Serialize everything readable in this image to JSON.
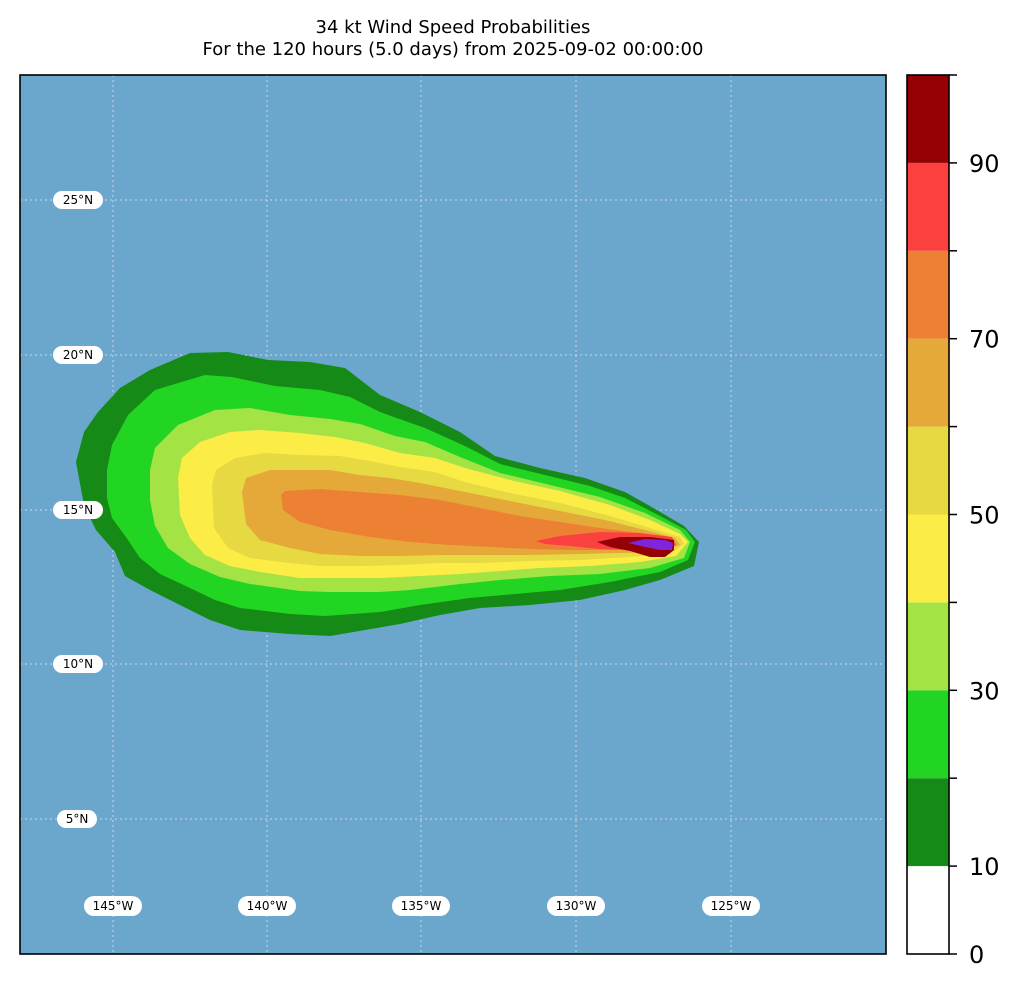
{
  "title": "34 kt Wind Speed Probabilities",
  "subtitle": "For the 120 hours (5.0 days) from 2025-09-02 00:00:00",
  "colors": {
    "ocean": "#6ba6cc",
    "grid": "#c8d8e4",
    "frame": "#000000"
  },
  "lat_labels": [
    "25°N",
    "20°N",
    "15°N",
    "10°N",
    "5°N"
  ],
  "lon_labels": [
    "145°W",
    "140°W",
    "135°W",
    "130°W",
    "125°W"
  ],
  "colorbar": {
    "levels": [
      0,
      10,
      20,
      30,
      40,
      50,
      60,
      70,
      80,
      90,
      100
    ],
    "tick_labels": [
      "0",
      "10",
      "30",
      "50",
      "70",
      "90"
    ],
    "colors": [
      "#ffffff",
      "#158a16",
      "#23d523",
      "#a3e444",
      "#fbed46",
      "#e6d942",
      "#e5a93a",
      "#ed8133",
      "#fb4040",
      "#950004",
      "#8124dc"
    ]
  }
}
